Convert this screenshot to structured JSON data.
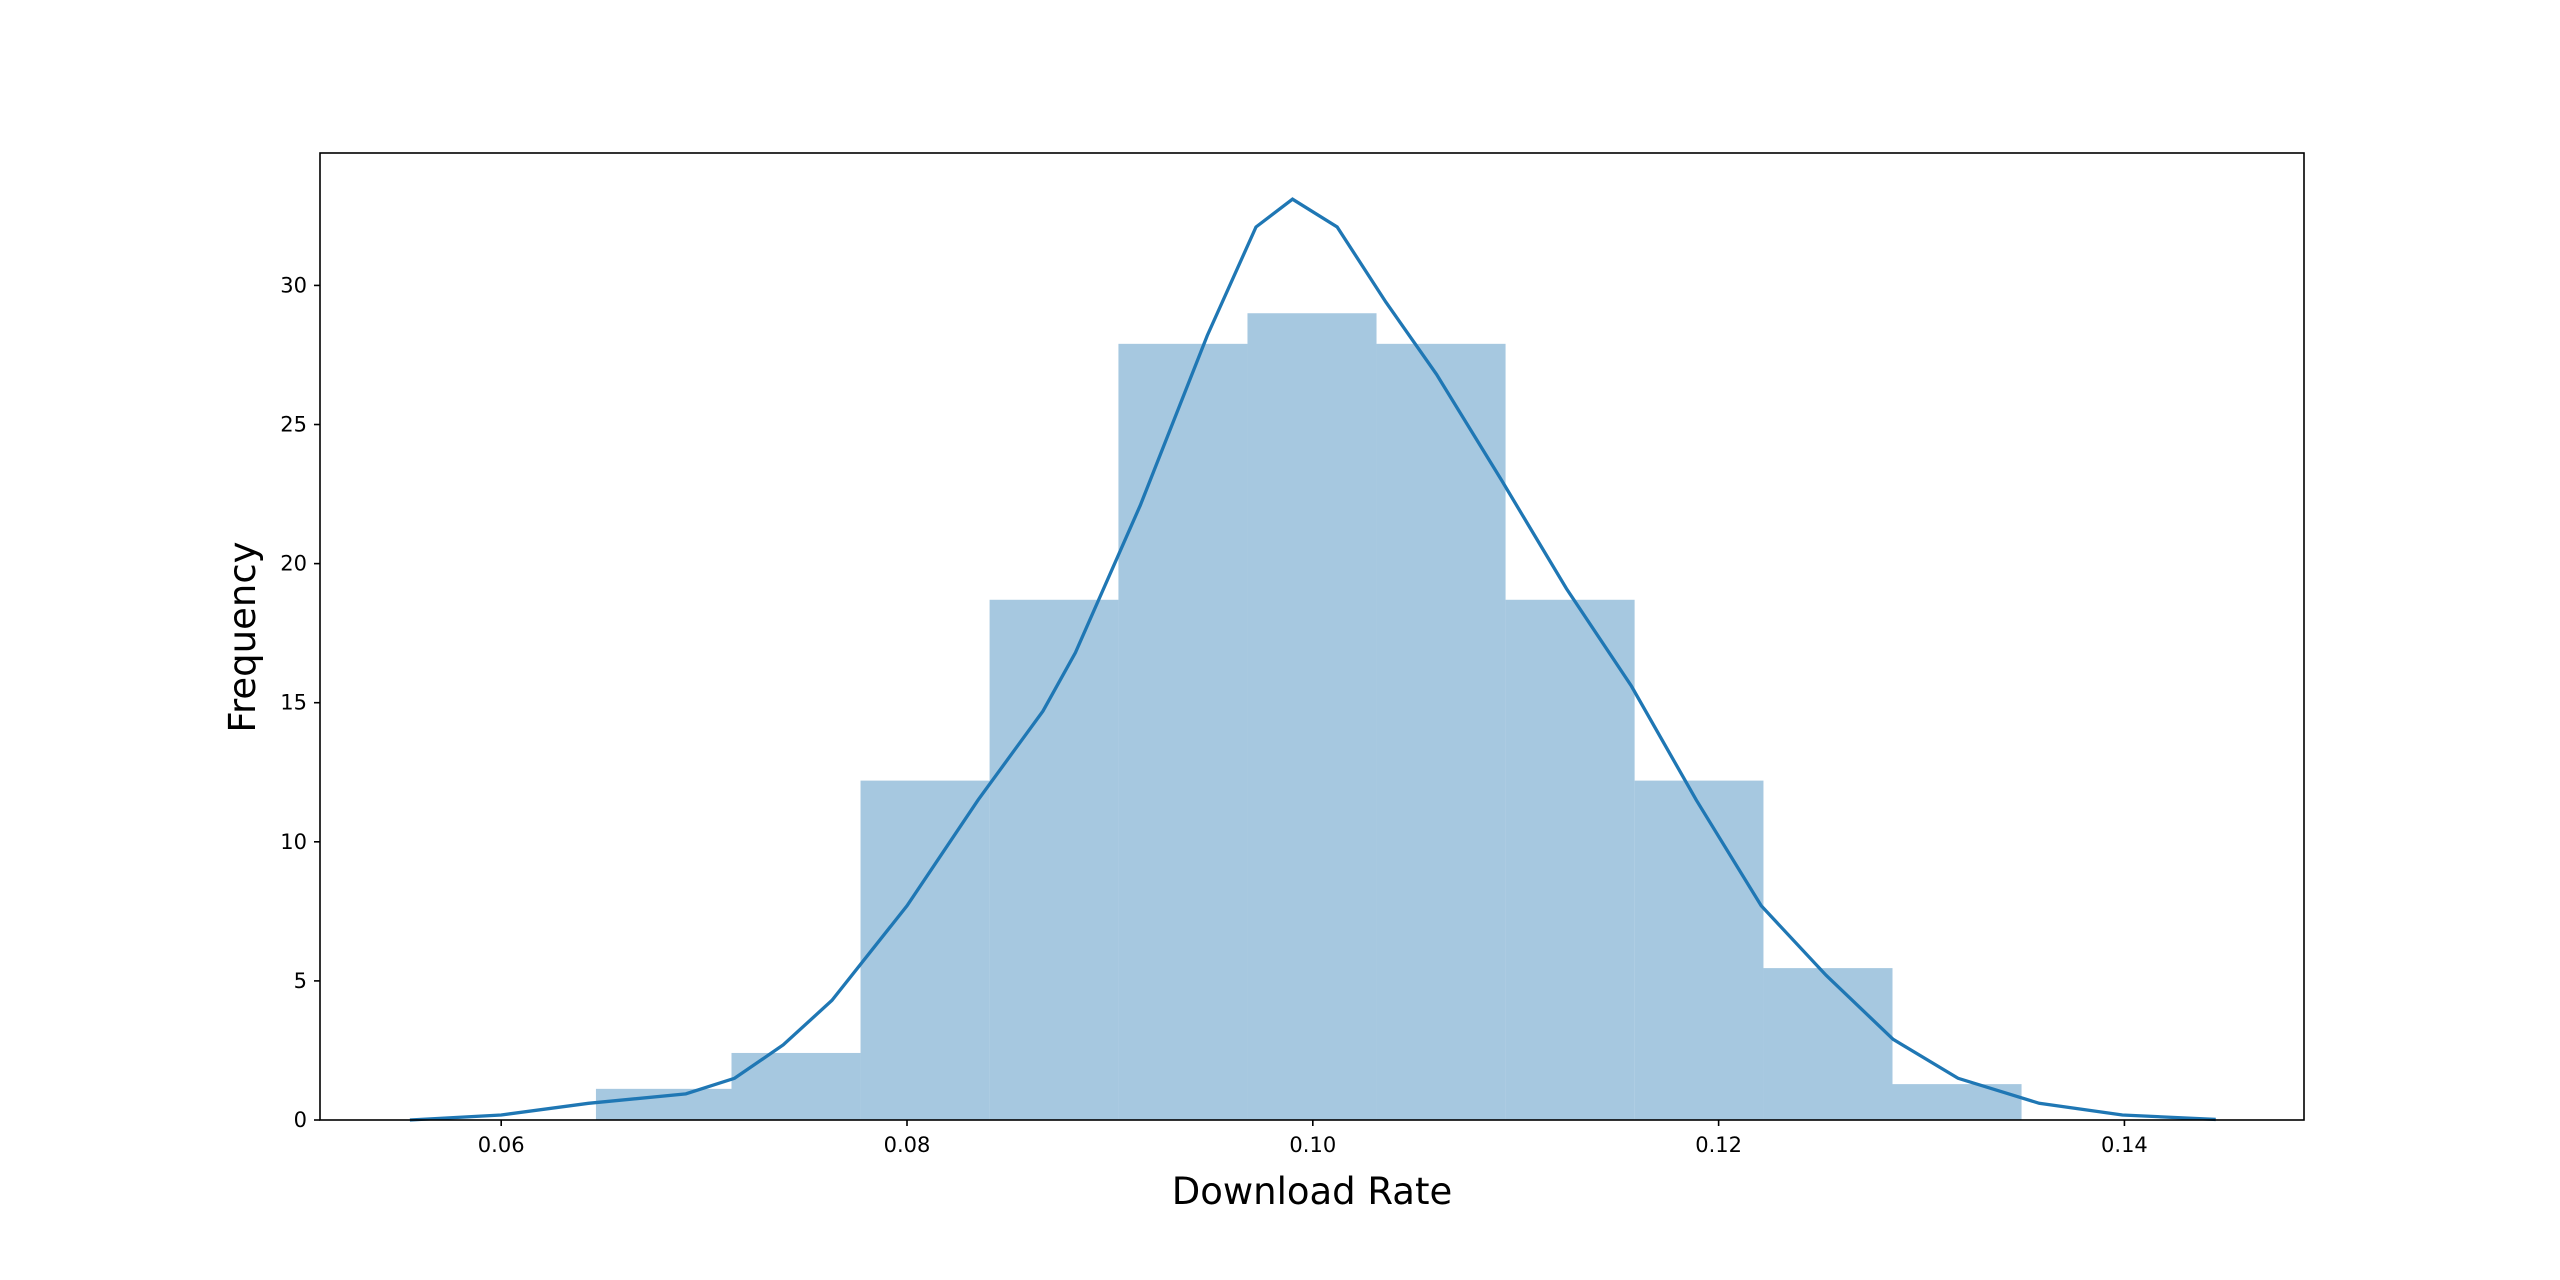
{
  "chart_data": {
    "type": "histogram",
    "xlabel": "Download Rate",
    "ylabel": "Frequency",
    "bins": [
      0.06467,
      0.07135,
      0.07771,
      0.08407,
      0.09042,
      0.09678,
      0.10314,
      0.1095,
      0.11586,
      0.12221,
      0.12857,
      0.13493
    ],
    "counts": [
      1.12,
      2.41,
      12.2,
      18.7,
      27.9,
      29.0,
      27.9,
      18.7,
      12.2,
      5.46,
      1.29
    ],
    "color": "#a6c8e0",
    "kde": {
      "color": "#1f77b4",
      "x": [
        0.0555,
        0.06,
        0.0643,
        0.0691,
        0.0715,
        0.0739,
        0.0763,
        0.08,
        0.0835,
        0.0867,
        0.0883,
        0.0915,
        0.0948,
        0.0972,
        0.099,
        0.1012,
        0.1036,
        0.1061,
        0.1093,
        0.1125,
        0.1157,
        0.1189,
        0.1221,
        0.1253,
        0.1286,
        0.1318,
        0.1358,
        0.1399,
        0.1445
      ],
      "values": [
        0.0,
        0.18,
        0.6,
        0.94,
        1.5,
        2.7,
        4.3,
        7.7,
        11.5,
        14.7,
        16.8,
        22.1,
        28.2,
        32.1,
        33.1,
        32.1,
        29.4,
        26.8,
        23.0,
        19.1,
        15.6,
        11.5,
        7.7,
        5.2,
        2.9,
        1.5,
        0.6,
        0.18,
        0.02
      ]
    },
    "xlim": [
      0.05107,
      0.14885
    ],
    "ylim": [
      0,
      34.76
    ],
    "xticks": [
      0.06,
      0.08,
      {
        "value": 0.1,
        "label": "0.10"
      },
      0.12,
      0.14
    ],
    "yticks": [
      0,
      5,
      10,
      15,
      20,
      25,
      30
    ]
  }
}
